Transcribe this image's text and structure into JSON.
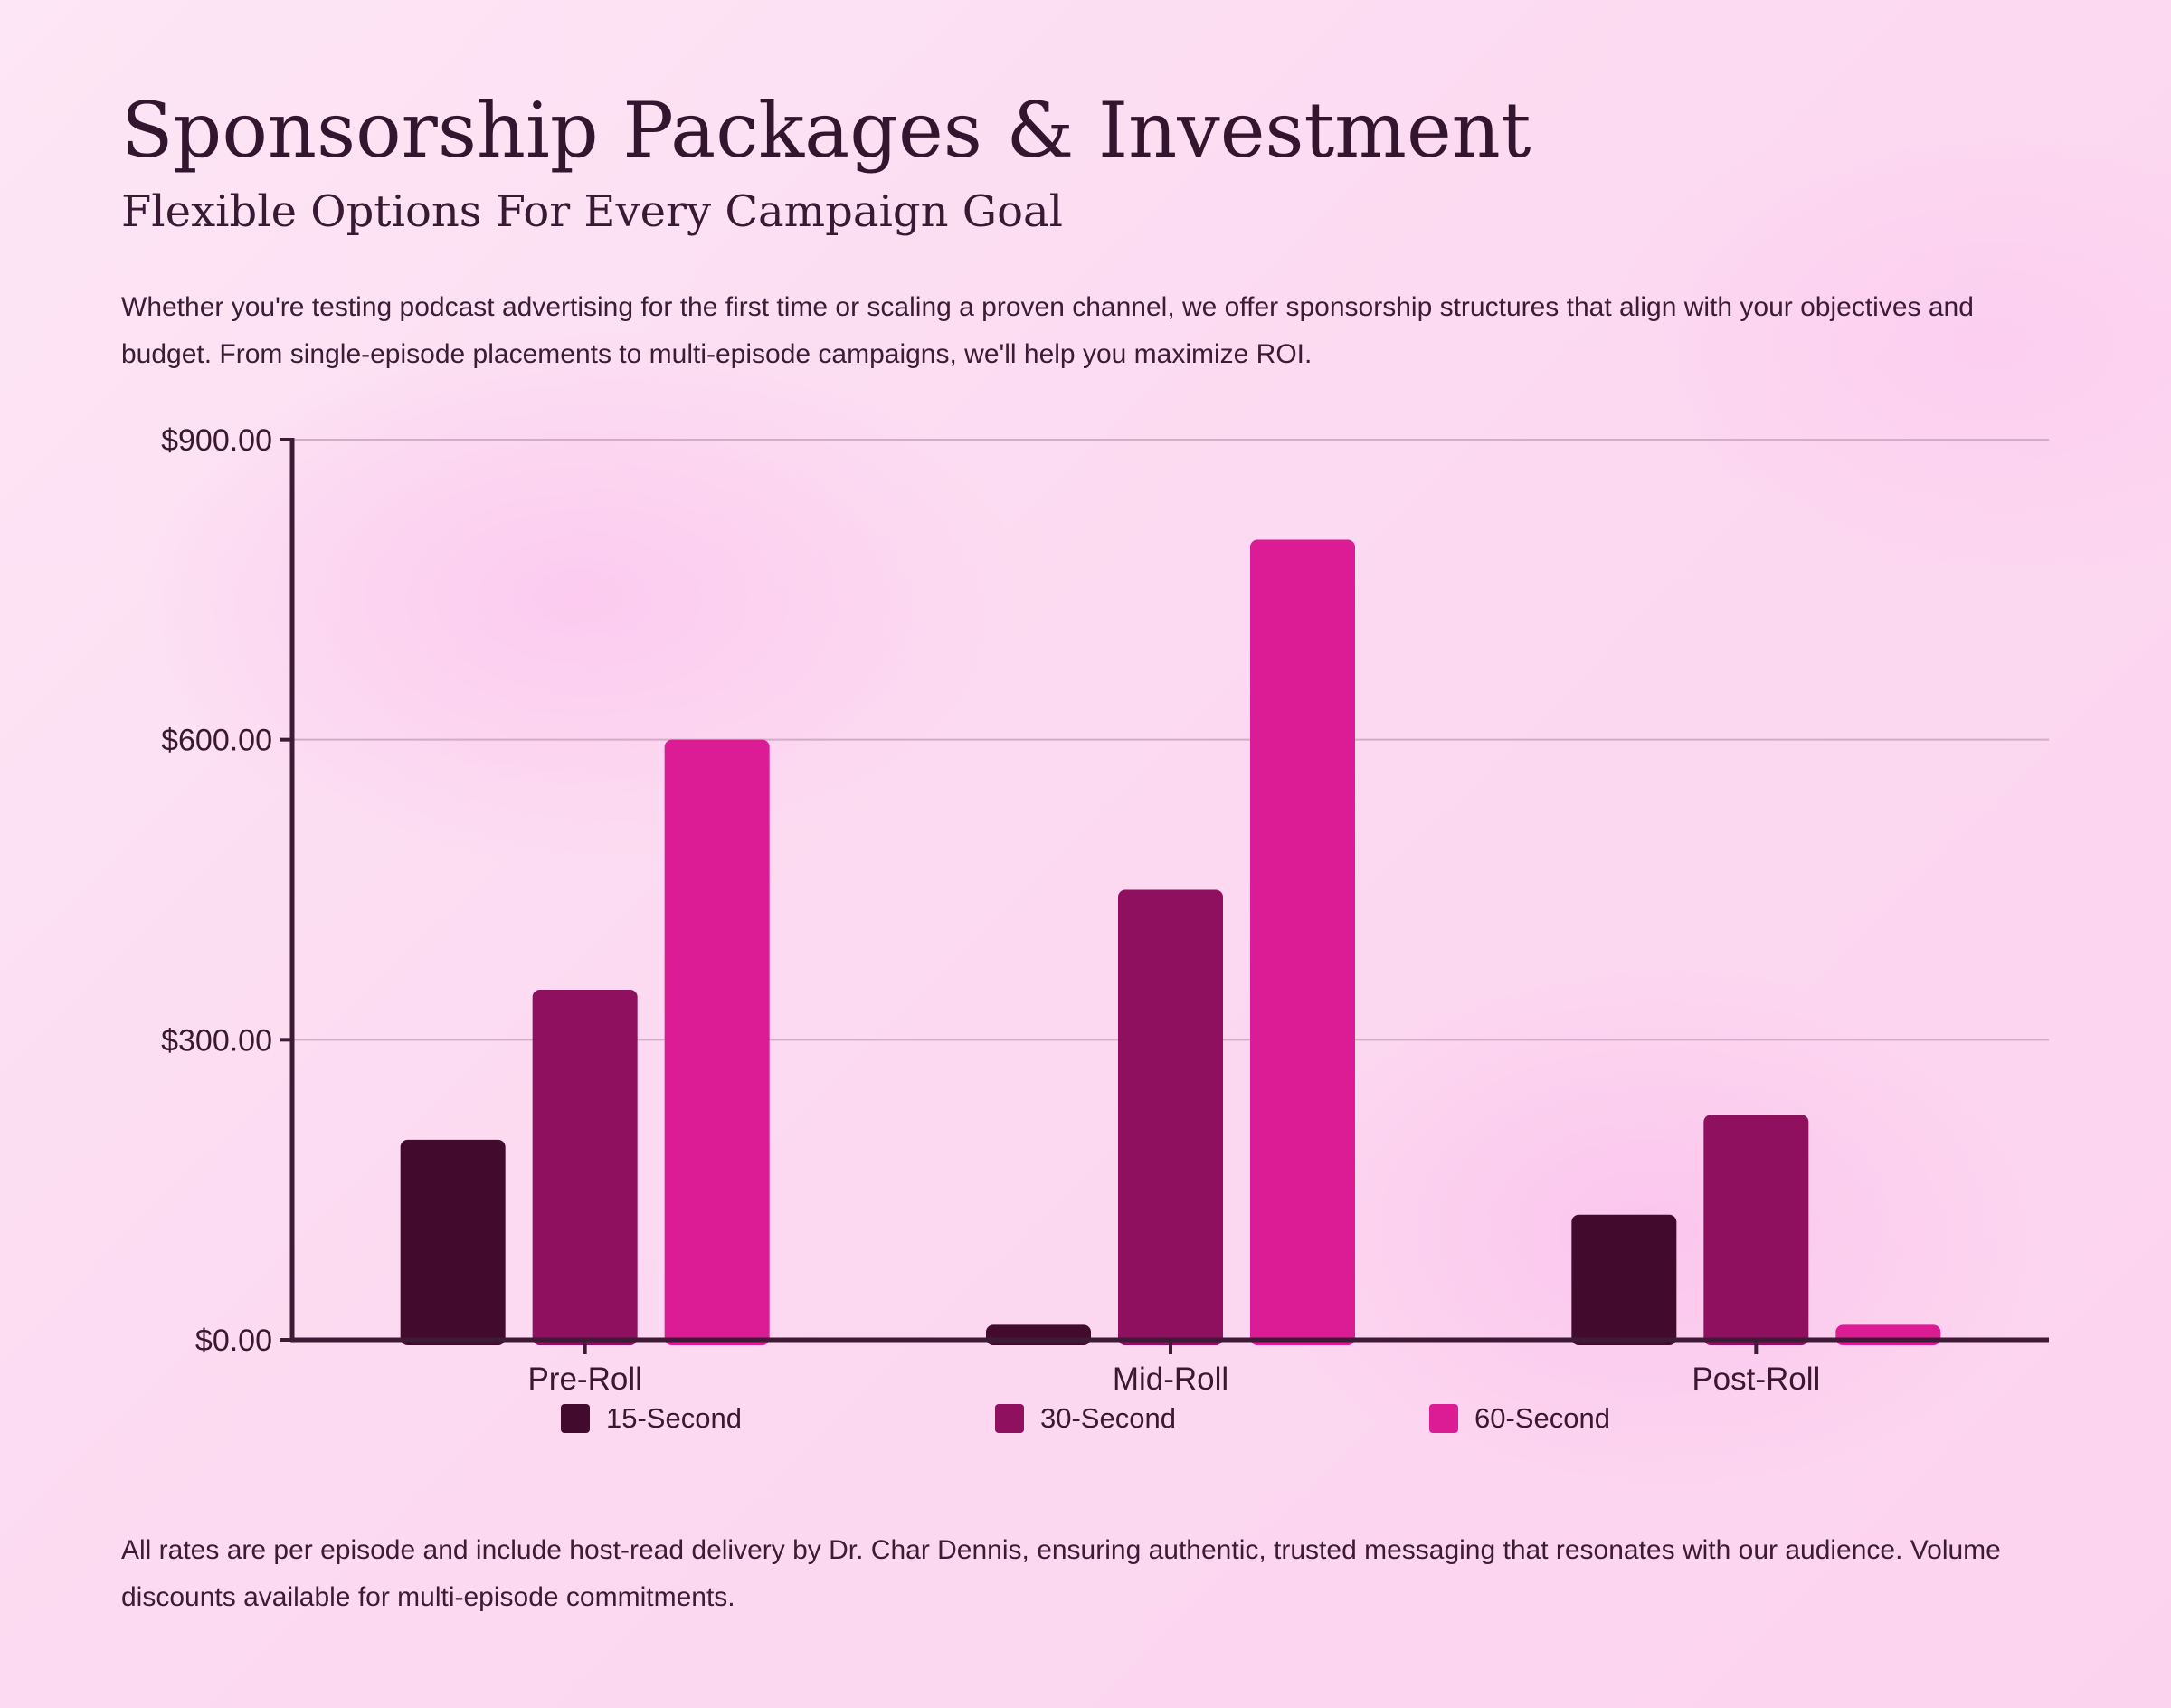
{
  "header": {
    "title": "Sponsorship Packages & Investment",
    "subtitle": "Flexible Options For Every Campaign Goal"
  },
  "intro": "Whether you're testing podcast advertising for the first time or scaling a proven channel, we offer sponsorship structures that align with your objectives and budget. From single-episode placements to multi-episode campaigns, we'll help you maximize ROI.",
  "footnote": "All rates are per episode and include host-read delivery by Dr. Char Dennis, ensuring authentic, trusted messaging that resonates with our audience. Volume discounts available for multi-episode commitments.",
  "chart_data": {
    "type": "bar",
    "title": "",
    "xlabel": "",
    "ylabel": "",
    "categories": [
      "Pre-Roll",
      "Mid-Roll",
      "Post-Roll"
    ],
    "series": [
      {
        "name": "15-Second",
        "color": "#420a2c",
        "values": [
          200,
          15,
          125
        ]
      },
      {
        "name": "30-Second",
        "color": "#8e105e",
        "values": [
          350,
          450,
          225
        ]
      },
      {
        "name": "60-Second",
        "color": "#dc1c94",
        "values": [
          600,
          800,
          15
        ]
      }
    ],
    "ylim": [
      0,
      900
    ],
    "yticks": [
      0,
      300,
      600,
      900
    ],
    "ytick_labels": [
      "$0.00",
      "$300.00",
      "$600.00",
      "$900.00"
    ],
    "grid": true,
    "legend": "bottom-center"
  }
}
